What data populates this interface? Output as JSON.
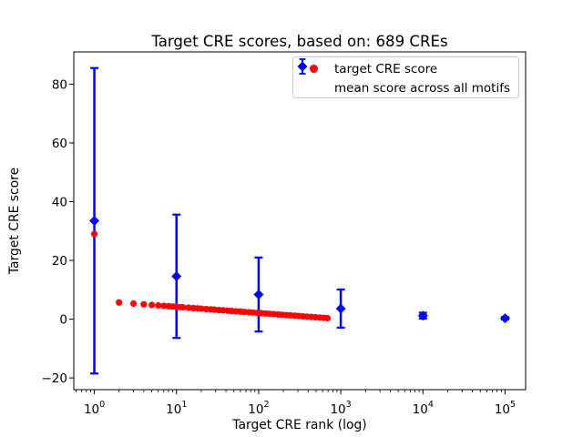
{
  "chart_data": {
    "type": "scatter",
    "title": "Target CRE scores, based on: 689 CREs",
    "xlabel": "Target CRE rank (log)",
    "ylabel": "Target CRE score",
    "x_scale": "log",
    "xlim": [
      0.562,
      177827
    ],
    "ylim": [
      -24,
      91
    ],
    "x_tick_values": [
      1,
      10,
      100,
      1000,
      10000,
      100000
    ],
    "x_tick_labels": [
      "10^0",
      "10^1",
      "10^2",
      "10^3",
      "10^4",
      "10^5"
    ],
    "y_tick_values": [
      -20,
      0,
      20,
      40,
      60,
      80
    ],
    "y_tick_labels": [
      "−20",
      "0",
      "20",
      "40",
      "60",
      "80"
    ],
    "grid": false,
    "legend": {
      "position": "upper right",
      "border_color": "#cccccc"
    },
    "colors": {
      "target": "#ff0000",
      "mean": "#0000ff",
      "axes": "#000000"
    },
    "series": [
      {
        "name": "target CRE score",
        "marker": "circle",
        "color": "#ff0000",
        "points": [
          [
            1,
            29.0
          ],
          [
            2,
            5.67
          ],
          [
            3,
            5.3
          ],
          [
            4,
            5.04
          ],
          [
            5,
            4.83
          ],
          [
            6,
            4.67
          ],
          [
            7,
            4.53
          ],
          [
            8,
            4.4
          ],
          [
            9,
            4.3
          ],
          [
            10,
            4.2
          ],
          [
            11,
            4.11
          ],
          [
            12,
            4.03
          ],
          [
            14,
            3.89
          ],
          [
            16,
            3.77
          ],
          [
            18,
            3.66
          ],
          [
            20,
            3.57
          ],
          [
            23,
            3.44
          ],
          [
            26,
            3.33
          ],
          [
            29,
            3.23
          ],
          [
            33,
            3.11
          ],
          [
            37,
            3.01
          ],
          [
            42,
            2.89
          ],
          [
            47,
            2.79
          ],
          [
            53,
            2.68
          ],
          [
            60,
            2.57
          ],
          [
            67,
            2.47
          ],
          [
            76,
            2.35
          ],
          [
            85,
            2.25
          ],
          [
            96,
            2.14
          ],
          [
            108,
            2.03
          ],
          [
            121,
            1.93
          ],
          [
            136,
            1.82
          ],
          [
            153,
            1.71
          ],
          [
            172,
            1.6
          ],
          [
            193,
            1.5
          ],
          [
            217,
            1.39
          ],
          [
            244,
            1.29
          ],
          [
            274,
            1.18
          ],
          [
            308,
            1.07
          ],
          [
            346,
            0.97
          ],
          [
            389,
            0.86
          ],
          [
            437,
            0.76
          ],
          [
            491,
            0.65
          ],
          [
            552,
            0.54
          ],
          [
            620,
            0.44
          ],
          [
            689,
            0.34
          ]
        ]
      },
      {
        "name": "mean score across all motifs",
        "marker": "diamond",
        "color": "#0000ff",
        "x": [
          1,
          10,
          100,
          1000,
          10000,
          100000
        ],
        "y": [
          33.5,
          14.6,
          8.4,
          3.6,
          1.2,
          0.3
        ],
        "yerr": [
          52.0,
          21.0,
          12.6,
          6.5,
          1.0,
          0.4
        ]
      }
    ]
  }
}
